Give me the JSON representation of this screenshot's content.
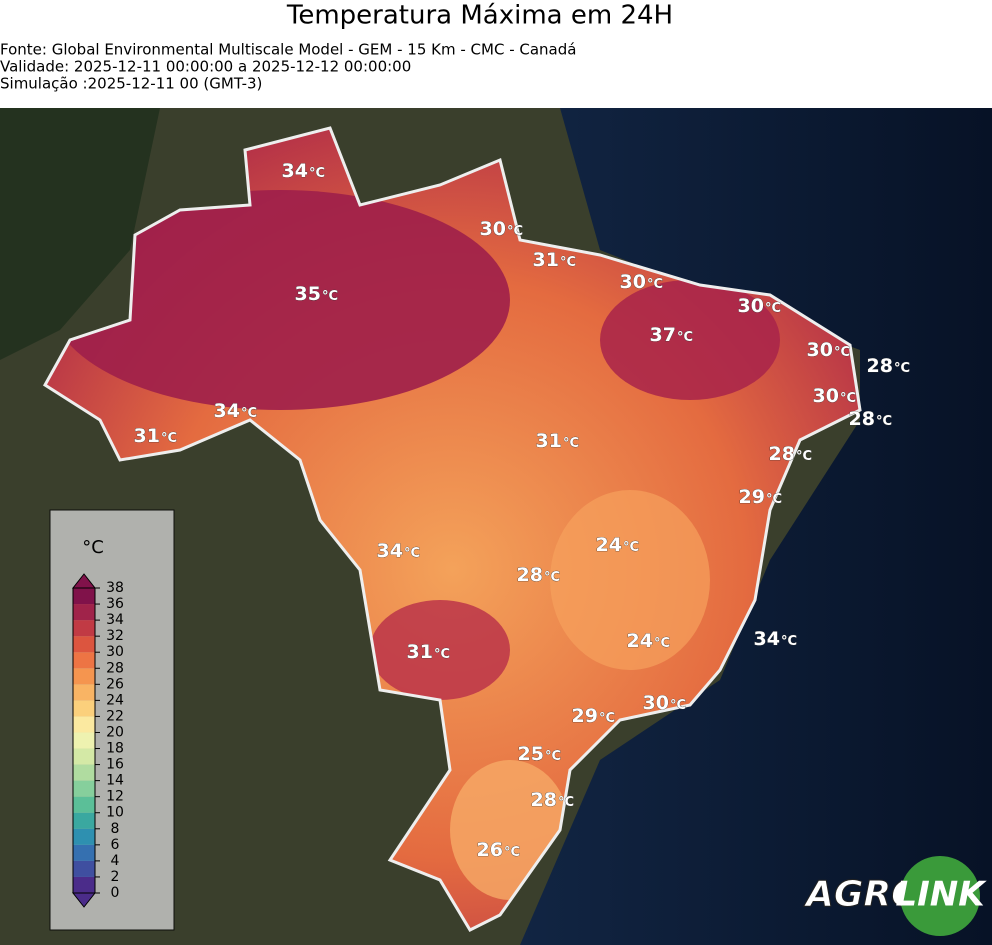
{
  "header": {
    "title": "Temperatura Máxima em 24H",
    "lines": [
      "Fonte: Global Environmental Multiscale Model - GEM - 15 Km - CMC - Canadá",
      "Validade: 2025-12-11 00:00:00 a 2025-12-12 00:00:00",
      "Simulação :2025-12-11 00 (GMT-3)"
    ]
  },
  "map": {
    "unit": "°C",
    "temperatures": [
      34,
      30,
      31,
      35,
      30,
      30,
      37,
      30,
      28,
      30,
      34,
      28,
      31,
      31,
      28,
      29,
      24,
      34,
      28,
      34,
      24,
      31,
      30,
      29,
      25,
      28,
      26
    ]
  },
  "colorbar": {
    "unit": "°C",
    "range": [
      0,
      38
    ],
    "ticks": [
      0,
      2,
      4,
      6,
      8,
      10,
      12,
      14,
      16,
      18,
      20,
      22,
      24,
      26,
      28,
      30,
      32,
      34,
      36,
      38
    ],
    "colors": [
      "#4b2c8a",
      "#3f4fa0",
      "#3570b0",
      "#2e90b0",
      "#3aa8a0",
      "#5bbf98",
      "#86cf9c",
      "#b0dca0",
      "#d4e9a6",
      "#eef2b0",
      "#fbe9a0",
      "#fbd07c",
      "#f9b464",
      "#f5954f",
      "#ed7444",
      "#dc553f",
      "#c13a44",
      "#a0234a",
      "#80124a"
    ]
  },
  "logo": {
    "left": "AGRO",
    "right": "LINK"
  }
}
